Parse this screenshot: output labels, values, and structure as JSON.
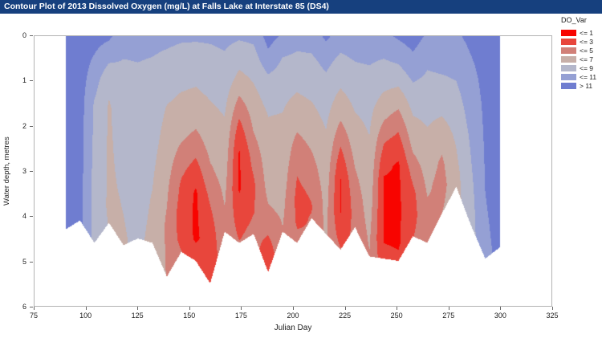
{
  "window": {
    "title": "Contour Plot of 2013 Dissolved Oxygen (mg/L) at Falls Lake at Interstate 85 (DS4)"
  },
  "colors": {
    "titlebar_bg": "#16407E",
    "titlebar_text": "#FFFFFF",
    "plot_border": "#B3B3B3",
    "axis_text": "#222222"
  },
  "chart_data": {
    "type": "heatmap",
    "title": "Contour Plot of 2013 Dissolved Oxygen (mg/L) at Falls Lake at Interstate 85 (DS4)",
    "xlabel": "Julian Day",
    "ylabel": "Water depth, metres",
    "xlim": [
      75,
      325
    ],
    "ylim": [
      0,
      6
    ],
    "y_inverted": true,
    "grid": false,
    "x_ticks": [
      75,
      100,
      125,
      150,
      175,
      200,
      225,
      250,
      275,
      300,
      325
    ],
    "y_ticks": [
      0,
      1,
      2,
      3,
      4,
      5,
      6
    ],
    "legend_title": "DO_Var",
    "legend_position": "right-top",
    "levels": [
      {
        "label": "<= 1",
        "max": 1,
        "color": "#F80400"
      },
      {
        "label": "<= 3",
        "max": 3,
        "color": "#E8463C"
      },
      {
        "label": "<= 5",
        "max": 5,
        "color": "#D18078"
      },
      {
        "label": "<= 7",
        "max": 7,
        "color": "#C7AFA8"
      },
      {
        "label": "<= 9",
        "max": 9,
        "color": "#B4B7CB"
      },
      {
        "label": "<= 11",
        "max": 11,
        "color": "#95A0D4"
      },
      {
        "label": "> 11",
        "max": null,
        "color": "#6F7DD0"
      }
    ],
    "columns": [
      {
        "x": 90,
        "bottom": 4.3,
        "profile": [
          [
            0,
            12
          ],
          [
            4.3,
            11.8
          ]
        ]
      },
      {
        "x": 97,
        "bottom": 4.1,
        "profile": [
          [
            0,
            12
          ],
          [
            4.1,
            11.6
          ]
        ]
      },
      {
        "x": 104,
        "bottom": 4.6,
        "profile": [
          [
            0,
            11.8
          ],
          [
            0.7,
            10.4
          ],
          [
            1.5,
            8.8
          ],
          [
            3,
            8.4
          ],
          [
            4.6,
            8.2
          ]
        ]
      },
      {
        "x": 111,
        "bottom": 4.15,
        "profile": [
          [
            0,
            11.4
          ],
          [
            0.5,
            9.4
          ],
          [
            1,
            7.4
          ],
          [
            1.6,
            6.8
          ],
          [
            3.8,
            6.7
          ],
          [
            4.15,
            6.9
          ]
        ]
      },
      {
        "x": 118,
        "bottom": 4.65,
        "profile": [
          [
            0,
            9.7
          ],
          [
            0.8,
            8.6
          ],
          [
            2.2,
            7.7
          ],
          [
            3.6,
            7.1
          ],
          [
            4.65,
            6.8
          ]
        ]
      },
      {
        "x": 125,
        "bottom": 4.5,
        "profile": [
          [
            0,
            9.7
          ],
          [
            1,
            8.5
          ],
          [
            3,
            7.9
          ],
          [
            4.5,
            7.4
          ]
        ]
      },
      {
        "x": 132,
        "bottom": 4.6,
        "profile": [
          [
            0,
            9.6
          ],
          [
            1,
            8.3
          ],
          [
            2.5,
            7.5
          ],
          [
            3.6,
            6.9
          ],
          [
            4.6,
            6.5
          ]
        ]
      },
      {
        "x": 139,
        "bottom": 5.35,
        "profile": [
          [
            0,
            9.5
          ],
          [
            0.8,
            8.1
          ],
          [
            1.6,
            6.9
          ],
          [
            2.6,
            6.1
          ],
          [
            3.4,
            5.3
          ],
          [
            4.2,
            4.7
          ],
          [
            5.35,
            4.9
          ]
        ]
      },
      {
        "x": 146,
        "bottom": 4.8,
        "profile": [
          [
            0,
            9.3
          ],
          [
            0.6,
            8.1
          ],
          [
            1.3,
            6.9
          ],
          [
            2.1,
            5.7
          ],
          [
            2.7,
            4.1
          ],
          [
            3.3,
            2.7
          ],
          [
            3.9,
            2.1
          ],
          [
            4.5,
            2.3
          ],
          [
            4.8,
            3.1
          ]
        ]
      },
      {
        "x": 153,
        "bottom": 5.0,
        "profile": [
          [
            0,
            9.3
          ],
          [
            0.6,
            7.9
          ],
          [
            1.3,
            6.7
          ],
          [
            1.9,
            5.5
          ],
          [
            2.5,
            3.7
          ],
          [
            3.1,
            1.7
          ],
          [
            3.5,
            0.7
          ],
          [
            4.5,
            0.7
          ],
          [
            4.9,
            1.9
          ],
          [
            5.0,
            2.3
          ]
        ]
      },
      {
        "x": 160,
        "bottom": 5.5,
        "profile": [
          [
            0,
            9.3
          ],
          [
            0.7,
            8.1
          ],
          [
            1.5,
            6.9
          ],
          [
            2.3,
            5.9
          ],
          [
            3.1,
            4.5
          ],
          [
            3.7,
            3.1
          ],
          [
            4.3,
            2.1
          ],
          [
            4.9,
            1.3
          ],
          [
            5.3,
            1.7
          ],
          [
            5.5,
            2.5
          ]
        ]
      },
      {
        "x": 167,
        "bottom": 4.35,
        "profile": [
          [
            0,
            9.5
          ],
          [
            0.8,
            8.3
          ],
          [
            1.7,
            7.1
          ],
          [
            2.5,
            6.3
          ],
          [
            3.3,
            5.5
          ],
          [
            3.9,
            4.9
          ],
          [
            4.35,
            4.7
          ]
        ]
      },
      {
        "x": 174,
        "bottom": 4.6,
        "profile": [
          [
            0,
            9.3
          ],
          [
            0.5,
            7.7
          ],
          [
            1,
            6.3
          ],
          [
            1.4,
            4.7
          ],
          [
            1.8,
            3.1
          ],
          [
            2.2,
            1.7
          ],
          [
            2.6,
            0.8
          ],
          [
            3.4,
            0.8
          ],
          [
            4,
            1.9
          ],
          [
            4.6,
            3.1
          ]
        ]
      },
      {
        "x": 181,
        "bottom": 4.4,
        "profile": [
          [
            0,
            9.5
          ],
          [
            0.6,
            7.9
          ],
          [
            1.3,
            6.5
          ],
          [
            2.1,
            5.1
          ],
          [
            2.7,
            3.7
          ],
          [
            3.3,
            2.7
          ],
          [
            3.9,
            2.9
          ],
          [
            4.4,
            3.7
          ]
        ]
      },
      {
        "x": 188,
        "bottom": 5.25,
        "profile": [
          [
            0,
            11.8
          ],
          [
            0.5,
            10.4
          ],
          [
            1,
            8.4
          ],
          [
            1.7,
            7.1
          ],
          [
            2.5,
            6.3
          ],
          [
            3.3,
            5.7
          ],
          [
            3.9,
            4.7
          ],
          [
            4.4,
            3.1
          ],
          [
            4.8,
            1.7
          ],
          [
            5.05,
            0.9
          ],
          [
            5.25,
            1.3
          ]
        ]
      },
      {
        "x": 195,
        "bottom": 4.35,
        "profile": [
          [
            0,
            10.7
          ],
          [
            0.5,
            8.9
          ],
          [
            1.2,
            7.5
          ],
          [
            2,
            6.7
          ],
          [
            3,
            6.1
          ],
          [
            3.7,
            5.5
          ],
          [
            4.35,
            4.9
          ]
        ]
      },
      {
        "x": 202,
        "bottom": 4.6,
        "profile": [
          [
            0,
            9.9
          ],
          [
            0.6,
            8.3
          ],
          [
            1.2,
            7.1
          ],
          [
            1.8,
            5.9
          ],
          [
            2.4,
            4.3
          ],
          [
            3,
            3.1
          ],
          [
            3.6,
            2.5
          ],
          [
            4.1,
            2.7
          ],
          [
            4.6,
            3.5
          ]
        ]
      },
      {
        "x": 209,
        "bottom": 4.05,
        "profile": [
          [
            0,
            9.9
          ],
          [
            0.6,
            8.5
          ],
          [
            1.4,
            7.1
          ],
          [
            2.2,
            5.7
          ],
          [
            2.8,
            4.5
          ],
          [
            3.4,
            3.3
          ],
          [
            3.8,
            2.9
          ],
          [
            4.05,
            3.1
          ]
        ]
      },
      {
        "x": 216,
        "bottom": 4.4,
        "profile": [
          [
            0,
            11.4
          ],
          [
            0.5,
            9.7
          ],
          [
            1.2,
            8.1
          ],
          [
            2,
            7.1
          ],
          [
            2.8,
            6.3
          ],
          [
            3.6,
            5.7
          ],
          [
            4.4,
            5.3
          ]
        ]
      },
      {
        "x": 223,
        "bottom": 4.75,
        "profile": [
          [
            0,
            10.1
          ],
          [
            0.6,
            8.3
          ],
          [
            1.2,
            6.9
          ],
          [
            1.8,
            5.3
          ],
          [
            2.3,
            3.5
          ],
          [
            2.8,
            1.9
          ],
          [
            3.2,
            0.9
          ],
          [
            3.9,
            0.9
          ],
          [
            4.4,
            2.1
          ],
          [
            4.75,
            3.1
          ]
        ]
      },
      {
        "x": 230,
        "bottom": 4.25,
        "profile": [
          [
            0,
            10.3
          ],
          [
            0.7,
            8.7
          ],
          [
            1.5,
            7.3
          ],
          [
            2.3,
            6.1
          ],
          [
            3,
            4.9
          ],
          [
            3.6,
            3.9
          ],
          [
            4.25,
            3.5
          ]
        ]
      },
      {
        "x": 237,
        "bottom": 4.9,
        "profile": [
          [
            0,
            10.3
          ],
          [
            0.8,
            8.7
          ],
          [
            1.6,
            7.5
          ],
          [
            2.6,
            6.7
          ],
          [
            3.6,
            6.1
          ],
          [
            4.4,
            5.3
          ],
          [
            4.9,
            4.9
          ]
        ]
      },
      {
        "x": 244,
        "bottom": 4.95,
        "profile": [
          [
            0,
            10.5
          ],
          [
            0.6,
            8.7
          ],
          [
            1.2,
            7.1
          ],
          [
            1.8,
            5.3
          ],
          [
            2.3,
            3.3
          ],
          [
            2.8,
            1.7
          ],
          [
            3.2,
            0.8
          ],
          [
            4.5,
            0.8
          ],
          [
            4.95,
            1.7
          ]
        ]
      },
      {
        "x": 251,
        "bottom": 5.0,
        "profile": [
          [
            0,
            11.3
          ],
          [
            0.5,
            9.5
          ],
          [
            1,
            7.5
          ],
          [
            1.5,
            5.5
          ],
          [
            2,
            3.5
          ],
          [
            2.5,
            1.7
          ],
          [
            2.9,
            0.7
          ],
          [
            4.6,
            0.7
          ],
          [
            5.0,
            1.5
          ]
        ]
      },
      {
        "x": 258,
        "bottom": 4.45,
        "profile": [
          [
            0,
            11.9
          ],
          [
            0.7,
            10.1
          ],
          [
            1.3,
            8.1
          ],
          [
            1.9,
            6.7
          ],
          [
            2.5,
            5.3
          ],
          [
            3,
            3.7
          ],
          [
            3.5,
            2.5
          ],
          [
            4,
            2.3
          ],
          [
            4.45,
            2.9
          ]
        ]
      },
      {
        "x": 265,
        "bottom": 4.6,
        "profile": [
          [
            0,
            10.7
          ],
          [
            0.7,
            9.1
          ],
          [
            1.5,
            7.7
          ],
          [
            2.4,
            6.5
          ],
          [
            3.2,
            5.5
          ],
          [
            3.8,
            4.7
          ],
          [
            4.6,
            4.5
          ]
        ]
      },
      {
        "x": 272,
        "bottom": 3.95,
        "profile": [
          [
            0,
            10.5
          ],
          [
            0.8,
            9.1
          ],
          [
            1.6,
            7.5
          ],
          [
            2.2,
            5.9
          ],
          [
            2.8,
            4.7
          ],
          [
            3.3,
            4.3
          ],
          [
            3.95,
            5.0
          ]
        ]
      },
      {
        "x": 279,
        "bottom": 3.35,
        "profile": [
          [
            0,
            10.7
          ],
          [
            0.8,
            9.3
          ],
          [
            1.6,
            8.1
          ],
          [
            2.4,
            7.1
          ],
          [
            3,
            6.5
          ],
          [
            3.35,
            6.3
          ]
        ]
      },
      {
        "x": 286,
        "bottom": 4.2,
        "profile": [
          [
            0,
            11.5
          ],
          [
            1,
            10.3
          ],
          [
            2.2,
            9.3
          ],
          [
            3.4,
            8.5
          ],
          [
            4.2,
            8.1
          ]
        ]
      },
      {
        "x": 293,
        "bottom": 4.95,
        "profile": [
          [
            0,
            12
          ],
          [
            1.5,
            11.4
          ],
          [
            3,
            11.1
          ],
          [
            4.95,
            10.7
          ]
        ]
      },
      {
        "x": 300,
        "bottom": 4.7,
        "profile": [
          [
            0,
            12
          ],
          [
            2,
            11.7
          ],
          [
            4.7,
            11.3
          ]
        ]
      }
    ]
  }
}
